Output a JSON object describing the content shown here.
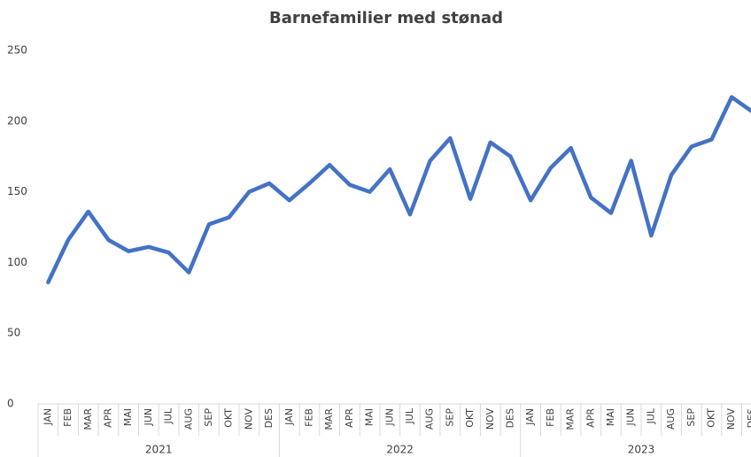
{
  "chart_data": {
    "type": "line",
    "title": "Barnefamilier med stønad",
    "categories": [
      "JAN",
      "FEB",
      "MAR",
      "APR",
      "MAI",
      "JUN",
      "JUL",
      "AUG",
      "SEP",
      "OKT",
      "NOV",
      "DES",
      "JAN",
      "FEB",
      "MAR",
      "APR",
      "MAI",
      "JUN",
      "JUL",
      "AUG",
      "SEP",
      "OKT",
      "NOV",
      "DES",
      "JAN",
      "FEB",
      "MAR",
      "APR",
      "MAI",
      "JUN",
      "JUL",
      "AUG",
      "SEP",
      "OKT",
      "NOV",
      "DES"
    ],
    "category_groups": [
      "2021",
      "2022",
      "2023"
    ],
    "series": [
      {
        "color": "#4472c4",
        "values": [
          86,
          116,
          136,
          116,
          108,
          111,
          107,
          93,
          127,
          132,
          150,
          156,
          144,
          156,
          169,
          155,
          150,
          166,
          134,
          172,
          188,
          145,
          185,
          175,
          144,
          167,
          181,
          146,
          135,
          172,
          119,
          162,
          182,
          187,
          217,
          207
        ]
      }
    ],
    "ylim": [
      0,
      250
    ],
    "yticks": [
      0,
      50,
      100,
      150,
      200,
      250
    ],
    "grid": false
  }
}
